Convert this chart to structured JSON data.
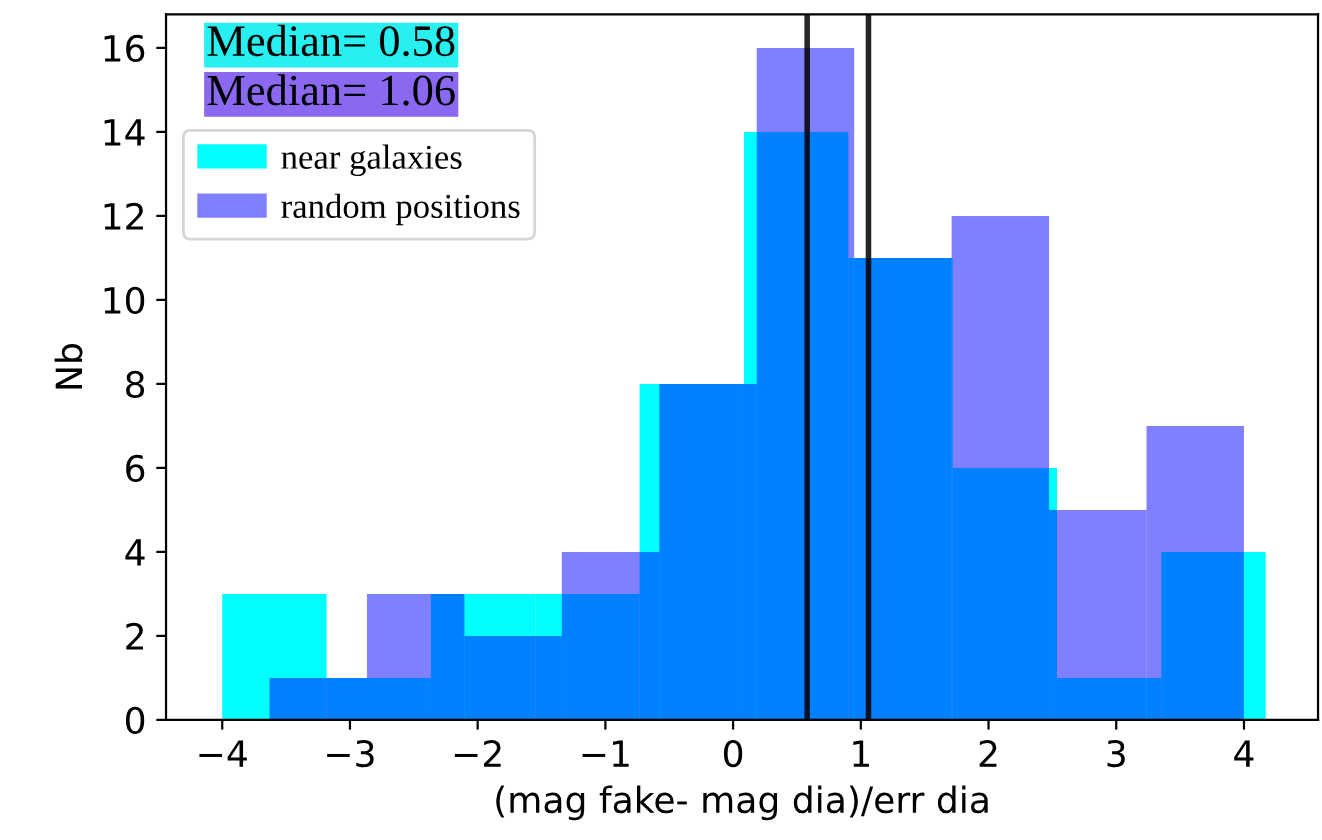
{
  "chart_data": {
    "type": "histogram",
    "xlabel": "(mag fake- mag dia)/err dia",
    "ylabel": "Nb",
    "bins": [
      -4.0,
      -3.183,
      -2.366,
      -1.549,
      -0.732,
      0.085,
      0.902,
      1.719,
      2.536,
      3.353,
      4.17
    ],
    "series": [
      {
        "name": "near galaxies",
        "color": "#00ffff",
        "values": [
          3,
          1,
          3,
          3,
          8,
          14,
          11,
          6,
          1,
          4
        ]
      },
      {
        "name": "random positions",
        "color": "#8080ff",
        "bins": [
          -3.63,
          -2.867,
          -2.104,
          -1.341,
          -0.578,
          0.185,
          0.948,
          1.711,
          2.474,
          3.237,
          4.0
        ],
        "values": [
          1,
          3,
          2,
          4,
          8,
          16,
          11,
          12,
          5,
          7
        ]
      }
    ],
    "ref_lines": [
      {
        "axis": "x",
        "value": 0.58,
        "color": "#000000"
      },
      {
        "axis": "x",
        "value": 1.06,
        "color": "#000000"
      }
    ],
    "annotations": [
      "Median= 0.58",
      "Median= 1.06"
    ],
    "xlim": [
      -4.44,
      4.58
    ],
    "ylim": [
      0,
      16.8
    ],
    "xticks": [
      {
        "value": -4,
        "label": "−4"
      },
      {
        "value": -3,
        "label": "−3"
      },
      {
        "value": -2,
        "label": "−2"
      },
      {
        "value": -1,
        "label": "−1"
      },
      0,
      1,
      2,
      3,
      4
    ],
    "yticks": [
      0,
      2,
      4,
      6,
      8,
      10,
      12,
      14,
      16
    ],
    "grid": false,
    "legend": "top left"
  }
}
